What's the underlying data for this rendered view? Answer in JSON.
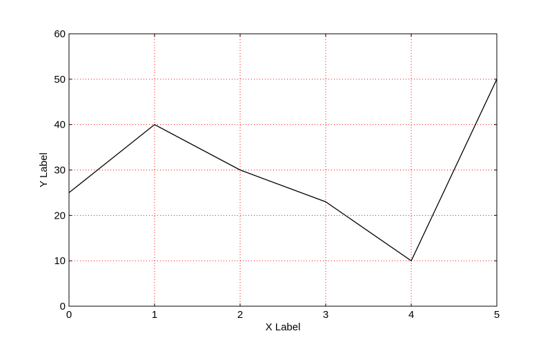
{
  "chart_data": {
    "type": "line",
    "title": "",
    "xlabel": "X Label",
    "ylabel": "Y Label",
    "xlim": [
      0,
      5
    ],
    "ylim": [
      0,
      60
    ],
    "x_ticks": [
      0,
      1,
      2,
      3,
      4,
      5
    ],
    "y_ticks": [
      0,
      10,
      20,
      30,
      40,
      50,
      60
    ],
    "grid": true,
    "grid_style": "dotted",
    "grid_color": "#ff0000",
    "line_color": "#000000",
    "series": [
      {
        "x": [
          0,
          1,
          2,
          3,
          4,
          5
        ],
        "values": [
          25,
          40,
          30,
          23,
          10,
          50
        ]
      }
    ]
  }
}
